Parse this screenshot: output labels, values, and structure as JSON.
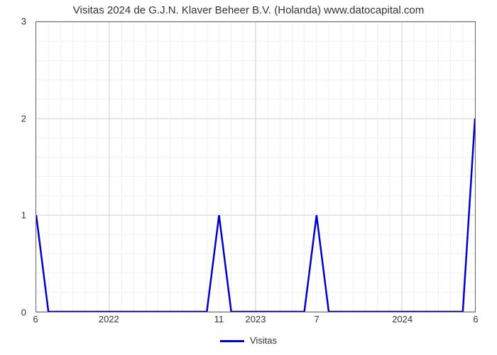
{
  "chart": {
    "type": "line",
    "title": "Visitas 2024 de G.J.N. Klaver Beheer B.V. (Holanda) www.datocapital.com",
    "title_fontsize": 15,
    "title_color": "#333333",
    "background_color": "#ffffff",
    "plot_border_color": "#666666",
    "grid_color": "#cccccc",
    "grid_minor_color": "#e8e8e8",
    "axis_label_fontsize": 13,
    "axis_label_color": "#333333",
    "y_axis": {
      "min": 0,
      "max": 3,
      "ticks": [
        0,
        1,
        2,
        3
      ]
    },
    "x_axis": {
      "min": 0,
      "max": 36,
      "year_labels": [
        {
          "pos": 6,
          "text": "2022"
        },
        {
          "pos": 18,
          "text": "2023"
        },
        {
          "pos": 30,
          "text": "2024"
        }
      ],
      "minor_ticks_every": 1,
      "major_ticks": [
        6,
        18,
        30
      ]
    },
    "series": {
      "label": "Visitas",
      "color": "#0000cc",
      "line_width": 2.5,
      "points": [
        {
          "x": 0,
          "y": 1
        },
        {
          "x": 1,
          "y": 0
        },
        {
          "x": 14,
          "y": 0
        },
        {
          "x": 15,
          "y": 1
        },
        {
          "x": 16,
          "y": 0
        },
        {
          "x": 22,
          "y": 0
        },
        {
          "x": 23,
          "y": 1
        },
        {
          "x": 24,
          "y": 0
        },
        {
          "x": 35,
          "y": 0
        },
        {
          "x": 36,
          "y": 2
        }
      ]
    },
    "callouts": [
      {
        "x": 0,
        "text": "6"
      },
      {
        "x": 15,
        "text": "11"
      },
      {
        "x": 23,
        "text": "7"
      },
      {
        "x": 36,
        "text": "6"
      }
    ],
    "legend": {
      "label": "Visitas",
      "color": "#0000cc"
    }
  }
}
